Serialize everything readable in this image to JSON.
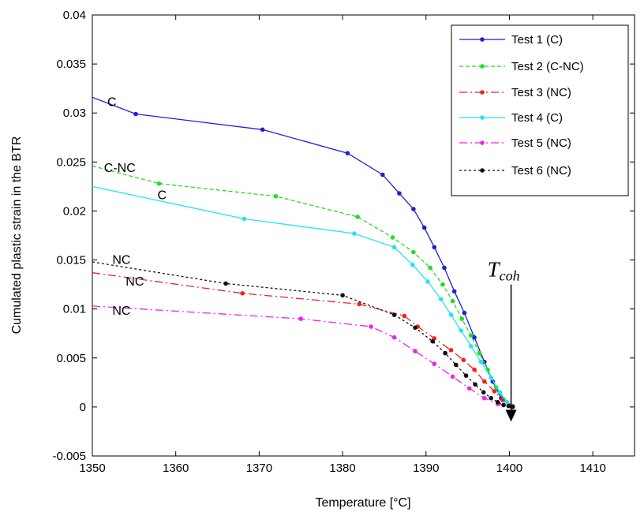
{
  "chart_data": {
    "type": "line",
    "xlabel": "Temperature [°C]",
    "ylabel": "Cumulated plastic strain in the BTR",
    "xlim": [
      1350,
      1415
    ],
    "ylim": [
      -0.005,
      0.04
    ],
    "xticks": [
      1350,
      1360,
      1370,
      1380,
      1390,
      1400,
      1410
    ],
    "yticks": [
      -0.005,
      0,
      0.005,
      0.01,
      0.015,
      0.02,
      0.025,
      0.03,
      0.035,
      0.04
    ],
    "xtick_labels": [
      "1350",
      "1360",
      "1370",
      "1380",
      "1390",
      "1400",
      "1410"
    ],
    "ytick_labels": [
      "-0.005",
      "0",
      "0.005",
      "0.01",
      "0.015",
      "0.02",
      "0.025",
      "0.03",
      "0.035",
      "0.04"
    ],
    "grid": false,
    "legend_position": "top-right",
    "series": [
      {
        "name": "Test 1 (C)",
        "color": "#1f1fd0",
        "dash": "",
        "x": [
          1350,
          1355.2,
          1370.4,
          1380.6,
          1384.8,
          1386.8,
          1388.5,
          1389.8,
          1391,
          1392.2,
          1393.4,
          1394.6,
          1395.8,
          1397,
          1398,
          1399,
          1400
        ],
        "y": [
          0.0316,
          0.0299,
          0.0283,
          0.0259,
          0.0237,
          0.0218,
          0.0202,
          0.0183,
          0.0163,
          0.0142,
          0.0118,
          0.0096,
          0.0071,
          0.0046,
          0.0026,
          0.0009,
          0.0001
        ]
      },
      {
        "name": "Test 2 (C-NC)",
        "color": "#22dd22",
        "dash": "5,3",
        "x": [
          1350,
          1358,
          1372,
          1381.8,
          1386,
          1388.5,
          1390.5,
          1392,
          1393.2,
          1394.3,
          1395.4,
          1396.4,
          1397.4,
          1398.4,
          1399.3,
          1400.4
        ],
        "y": [
          0.0246,
          0.0228,
          0.0215,
          0.0194,
          0.0173,
          0.0158,
          0.0142,
          0.0125,
          0.0108,
          0.009,
          0.0073,
          0.0055,
          0.0038,
          0.002,
          0.0008,
          0.0001
        ]
      },
      {
        "name": "Test 3 (NC)",
        "color": "#ee2222",
        "dash": "10,4,2,4",
        "x": [
          1350,
          1368,
          1382,
          1387.4,
          1389,
          1391,
          1393,
          1394.5,
          1395.8,
          1397,
          1398.2,
          1399.2,
          1400.3
        ],
        "y": [
          0.0137,
          0.0116,
          0.0105,
          0.0093,
          0.0082,
          0.007,
          0.0058,
          0.0048,
          0.0038,
          0.0026,
          0.0016,
          0.0007,
          0.0001
        ]
      },
      {
        "name": "Test 4 (C)",
        "color": "#22e5f0",
        "dash": "",
        "x": [
          1350,
          1368.2,
          1381.4,
          1386.2,
          1388.4,
          1390.2,
          1391.8,
          1393,
          1394.2,
          1395.4,
          1396.6,
          1397.8,
          1398.9,
          1399.7,
          1400.2
        ],
        "y": [
          0.0225,
          0.0192,
          0.0177,
          0.0163,
          0.0145,
          0.0128,
          0.011,
          0.0094,
          0.0078,
          0.0062,
          0.0046,
          0.003,
          0.0015,
          0.0005,
          0.0001
        ]
      },
      {
        "name": "Test 5 (NC)",
        "color": "#ee22ee",
        "dash": "10,4,2,4",
        "x": [
          1350,
          1375,
          1383.4,
          1386.2,
          1388.7,
          1391,
          1393.2,
          1395.2,
          1397,
          1398.6,
          1400
        ],
        "y": [
          0.0103,
          0.009,
          0.0082,
          0.0071,
          0.0057,
          0.0044,
          0.0031,
          0.0019,
          0.0009,
          0.0003,
          0.0001
        ]
      },
      {
        "name": "Test 6 (NC)",
        "color": "#111111",
        "dash": "3,3",
        "x": [
          1350,
          1366,
          1380,
          1386.2,
          1388.7,
          1390.8,
          1392.3,
          1393.6,
          1394.8,
          1395.9,
          1396.9,
          1397.8,
          1398.6,
          1399.3,
          1399.9,
          1400.4
        ],
        "y": [
          0.0148,
          0.0126,
          0.0114,
          0.0094,
          0.0081,
          0.0067,
          0.0055,
          0.0043,
          0.0032,
          0.0023,
          0.0015,
          0.0009,
          0.0005,
          0.0002,
          0.0001,
          0.0
        ]
      }
    ],
    "annotations": [
      {
        "text": "C",
        "x": 1351.8,
        "y": 0.0307
      },
      {
        "text": "C-NC",
        "x": 1351.4,
        "y": 0.024
      },
      {
        "text": "C",
        "x": 1357.8,
        "y": 0.0212
      },
      {
        "text": "NC",
        "x": 1352.4,
        "y": 0.0146
      },
      {
        "text": "NC",
        "x": 1354.0,
        "y": 0.0124
      },
      {
        "text": "NC",
        "x": 1352.4,
        "y": 0.0094
      }
    ],
    "tcoh": {
      "label": "T",
      "sub": "coh",
      "x": 1400.2,
      "y_from": 0.0125,
      "y_to": -0.0015
    }
  }
}
